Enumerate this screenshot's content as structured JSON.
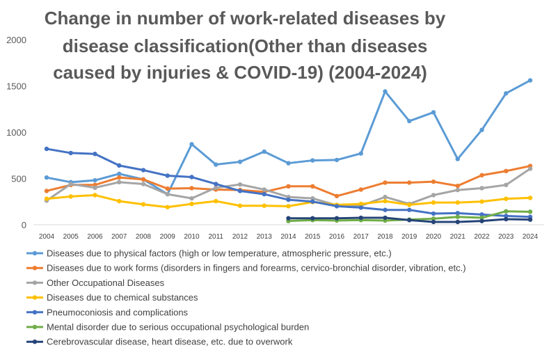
{
  "chart_data": {
    "type": "line",
    "title_lines": [
      "Change in number of work-related diseases by",
      "disease classification(Other than diseases",
      "caused by injuries & COVID-19) (2004-2024)"
    ],
    "xlabel": "",
    "ylabel": "",
    "ylim": [
      0,
      2000
    ],
    "yticks": [
      0,
      500,
      1000,
      1500,
      2000
    ],
    "grid": false,
    "legend_position": "bottom",
    "categories": [
      "2004",
      "2005",
      "2006",
      "2007",
      "2008",
      "2009",
      "2010",
      "2011",
      "2012",
      "2013",
      "2014",
      "2015",
      "2016",
      "2017",
      "2018",
      "2019",
      "2020",
      "2021",
      "2022",
      "2023",
      "2024"
    ],
    "series": [
      {
        "name": "Diseases due to physical factors (high or low temperature, atmospheric pressure, etc.)",
        "color": "#5b9bd5",
        "values": [
          510,
          460,
          480,
          550,
          490,
          330,
          870,
          650,
          680,
          790,
          665,
          695,
          700,
          770,
          1440,
          1120,
          1215,
          710,
          1025,
          1420,
          1560
        ]
      },
      {
        "name": "Diseases due to work forms (disorders in fingers and forearms, cervico-bronchial disorder, vibration, etc.)",
        "color": "#ed7d31",
        "values": [
          365,
          430,
          430,
          510,
          490,
          390,
          395,
          380,
          375,
          355,
          415,
          415,
          310,
          380,
          455,
          455,
          465,
          420,
          535,
          580,
          635
        ]
      },
      {
        "name": "Other Occupational Diseases",
        "color": "#a5a5a5",
        "values": [
          260,
          440,
          400,
          460,
          440,
          330,
          285,
          400,
          435,
          380,
          300,
          285,
          210,
          205,
          300,
          225,
          320,
          375,
          395,
          430,
          605
        ]
      },
      {
        "name": "Diseases due to chemical substances",
        "color": "#ffc000",
        "values": [
          280,
          305,
          320,
          255,
          220,
          190,
          225,
          255,
          205,
          205,
          200,
          245,
          215,
          225,
          255,
          215,
          240,
          240,
          250,
          280,
          290
        ]
      },
      {
        "name": "Pneumoconiosis and complications",
        "color": "#4472c4",
        "values": [
          820,
          775,
          765,
          640,
          590,
          530,
          515,
          440,
          365,
          330,
          270,
          250,
          200,
          185,
          160,
          160,
          120,
          125,
          110,
          95,
          85
        ]
      },
      {
        "name": "Mental disorder due to serious occupational psychological burden",
        "color": "#70ad47",
        "values": [
          null,
          null,
          null,
          null,
          null,
          null,
          null,
          null,
          null,
          null,
          40,
          50,
          45,
          50,
          45,
          55,
          65,
          85,
          75,
          145,
          140
        ]
      },
      {
        "name": "Cerebrovascular disease, heart disease, etc. due to overwork",
        "color": "#264478",
        "values": [
          null,
          null,
          null,
          null,
          null,
          null,
          null,
          null,
          null,
          null,
          70,
          70,
          70,
          75,
          75,
          50,
          30,
          30,
          40,
          60,
          55
        ]
      }
    ]
  }
}
